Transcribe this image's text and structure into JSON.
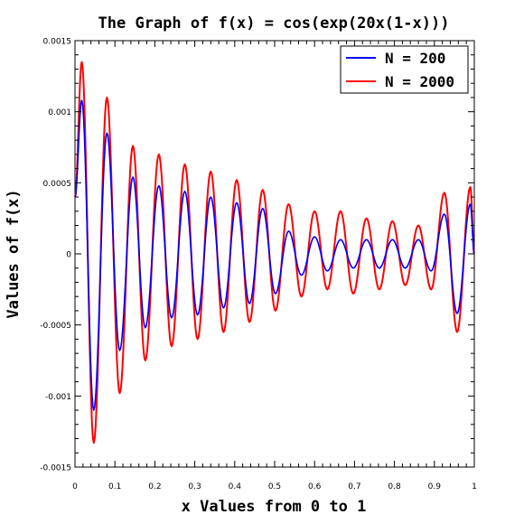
{
  "chart_data": {
    "type": "line",
    "title": "The Graph of f(x) = cos(exp(20x(1-x)))",
    "xlabel": "x Values from 0 to 1",
    "ylabel": "Values of f(x)",
    "xlim": [
      0,
      1
    ],
    "ylim": [
      -0.0015,
      0.0015
    ],
    "x_ticks": [
      "0",
      "0.1",
      "0.2",
      "0.3",
      "0.4",
      "0.5",
      "0.6",
      "0.7",
      "0.8",
      "0.9",
      "1"
    ],
    "y_ticks": [
      "-0.0015",
      "-0.001",
      "-0.0005",
      "0",
      "0.0005",
      "0.001",
      "0.0015"
    ],
    "legend_position": "top-right",
    "grid": false,
    "series": [
      {
        "name": "N = 200",
        "color": "#0000ff",
        "peaks": [
          [
            0.0,
            0.0004
          ],
          [
            0.017,
            0.00108
          ],
          [
            0.047,
            -0.0011
          ],
          [
            0.08,
            0.00085
          ],
          [
            0.112,
            -0.00068
          ],
          [
            0.145,
            0.00054
          ],
          [
            0.176,
            -0.00052
          ],
          [
            0.21,
            0.00048
          ],
          [
            0.242,
            -0.00045
          ],
          [
            0.275,
            0.00044
          ],
          [
            0.307,
            -0.00043
          ],
          [
            0.34,
            0.0004
          ],
          [
            0.372,
            -0.00038
          ],
          [
            0.405,
            0.00036
          ],
          [
            0.437,
            -0.00035
          ],
          [
            0.47,
            0.00032
          ],
          [
            0.502,
            -0.00028
          ],
          [
            0.535,
            0.00016
          ],
          [
            0.567,
            -0.00015
          ],
          [
            0.6,
            0.00012
          ],
          [
            0.632,
            -0.00012
          ],
          [
            0.665,
            0.0001
          ],
          [
            0.697,
            -0.0001
          ],
          [
            0.73,
            0.0001
          ],
          [
            0.762,
            -0.0001
          ],
          [
            0.795,
            0.0001
          ],
          [
            0.827,
            -0.0001
          ],
          [
            0.86,
            0.0001
          ],
          [
            0.892,
            -0.00012
          ],
          [
            0.925,
            0.00028
          ],
          [
            0.957,
            -0.00042
          ],
          [
            0.99,
            0.00035
          ],
          [
            1.0,
            0.0
          ]
        ]
      },
      {
        "name": "N = 2000",
        "color": "#ff0000",
        "peaks": [
          [
            0.0,
            0.0004
          ],
          [
            0.017,
            0.00135
          ],
          [
            0.047,
            -0.00133
          ],
          [
            0.08,
            0.0011
          ],
          [
            0.112,
            -0.00098
          ],
          [
            0.145,
            0.00076
          ],
          [
            0.176,
            -0.00075
          ],
          [
            0.21,
            0.0007
          ],
          [
            0.242,
            -0.00065
          ],
          [
            0.275,
            0.00063
          ],
          [
            0.307,
            -0.0006
          ],
          [
            0.34,
            0.00058
          ],
          [
            0.372,
            -0.00055
          ],
          [
            0.405,
            0.00052
          ],
          [
            0.437,
            -0.00048
          ],
          [
            0.47,
            0.00045
          ],
          [
            0.502,
            -0.0004
          ],
          [
            0.535,
            0.00035
          ],
          [
            0.567,
            -0.0003
          ],
          [
            0.6,
            0.0003
          ],
          [
            0.632,
            -0.00025
          ],
          [
            0.665,
            0.0003
          ],
          [
            0.697,
            -0.00028
          ],
          [
            0.73,
            0.00025
          ],
          [
            0.762,
            -0.00025
          ],
          [
            0.795,
            0.00023
          ],
          [
            0.827,
            -0.00022
          ],
          [
            0.86,
            0.0002
          ],
          [
            0.892,
            -0.00025
          ],
          [
            0.925,
            0.00043
          ],
          [
            0.957,
            -0.00055
          ],
          [
            0.99,
            0.00047
          ],
          [
            1.0,
            0.0
          ]
        ]
      }
    ]
  }
}
